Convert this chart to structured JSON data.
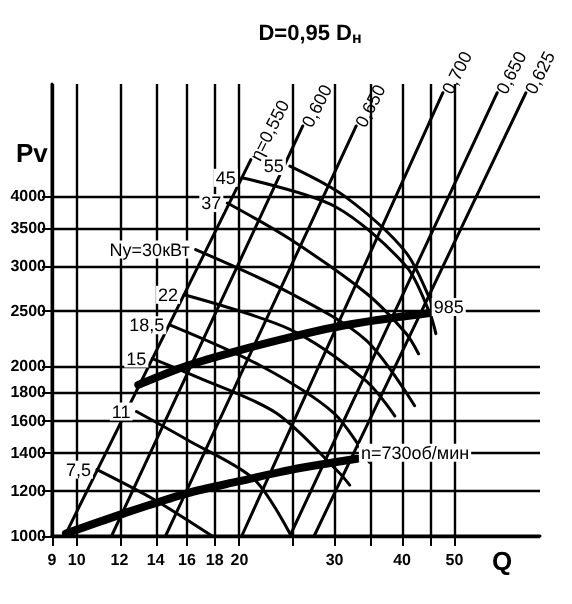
{
  "chart_data": {
    "type": "line",
    "title": "D=0,95 D$_{н}$",
    "xlabel": "Q",
    "ylabel": "Pv",
    "log": "xy",
    "grid": true,
    "xlim": [
      9,
      72
    ],
    "ylim": [
      1000,
      6300
    ],
    "xticks": [
      9,
      10,
      12,
      14,
      16,
      18,
      20,
      {
        "value": 25,
        "label": null
      },
      30,
      {
        "value": 35,
        "label": null
      },
      40,
      {
        "value": 45,
        "label": null
      },
      50
    ],
    "yticks": [
      1000,
      1200,
      1400,
      1600,
      1800,
      2000,
      2500,
      3000,
      3500,
      4000
    ],
    "series": [
      {
        "name": "η=0,550",
        "color": "#000000",
        "x": [
          9.55,
          21.0
        ],
        "values": [
          1010,
          4630
        ]
      },
      {
        "name": "0,600",
        "color": "#000000",
        "x": [
          11.6,
          26.2
        ],
        "values": [
          1000,
          5310
        ]
      },
      {
        "name": "0,650",
        "color": "#000000",
        "x": [
          14.6,
          32.9
        ],
        "values": [
          1000,
          5310
        ]
      },
      {
        "name": "0,700",
        "color": "#000000",
        "x": [
          20.2,
          47.6
        ],
        "values": [
          1000,
          6080
        ]
      },
      {
        "name": "0,650",
        "color": "#000000",
        "x": [
          24.8,
          60
        ],
        "values": [
          1000,
          6080
        ]
      },
      {
        "name": "0,625",
        "color": "#000000",
        "x": [
          27.5,
          67.8
        ],
        "values": [
          1000,
          6080
        ]
      },
      {
        "name": "7,5",
        "color": "#000000",
        "x": [
          10.9,
          13.9,
          17.8
        ],
        "values": [
          1310,
          1160,
          1000
        ]
      },
      {
        "name": "11",
        "color": "#000000",
        "x": [
          12.9,
          16,
          21.3,
          24.8
        ],
        "values": [
          1660,
          1480,
          1260,
          1010
        ]
      },
      {
        "name": "15",
        "color": "#000000",
        "x": [
          13.8,
          16.5,
          23.4,
          30.7,
          32
        ],
        "values": [
          2060,
          1920,
          1650,
          1290,
          1230
        ]
      },
      {
        "name": "18,5",
        "color": "#000000",
        "x": [
          14.9,
          21.9,
          29.9,
          34.8
        ],
        "values": [
          2360,
          2000,
          1650,
          1350
        ]
      },
      {
        "name": "22",
        "color": "#000000",
        "x": [
          15.8,
          24.8,
          34.1,
          38.8
        ],
        "values": [
          2670,
          2320,
          1890,
          1630
        ]
      },
      {
        "name": "Ny=30кВт",
        "color": "#000000",
        "x": [
          16.6,
          24.8,
          34.3,
          42.2
        ],
        "values": [
          3210,
          2690,
          2220,
          1700
        ]
      },
      {
        "name": "37",
        "color": "#000000",
        "x": [
          19.0,
          24.8,
          34.3,
          40.7,
          42.9
        ],
        "values": [
          3880,
          3350,
          2690,
          2280,
          2100
        ]
      },
      {
        "name": "45",
        "color": "#000000",
        "x": [
          20.2,
          30,
          40.7,
          45,
          46.2
        ],
        "values": [
          4300,
          3830,
          3000,
          2480,
          2280
        ]
      },
      {
        "name": "55",
        "color": "#000000",
        "x": [
          24.8,
          31.3,
          40.7,
          45.8
        ],
        "values": [
          4510,
          3990,
          3170,
          2520
        ]
      },
      {
        "name": "985",
        "color": "#000000",
        "x": [
          13,
          16,
          20,
          25,
          30,
          36,
          45
        ],
        "values": [
          1850,
          2000,
          2130,
          2250,
          2340,
          2410,
          2480
        ]
      },
      {
        "name": "n=730об/мин",
        "color": "#000000",
        "x": [
          9.55,
          12,
          16,
          20,
          25,
          30,
          33
        ],
        "values": [
          1010,
          1090,
          1190,
          1250,
          1310,
          1350,
          1370
        ]
      }
    ]
  }
}
